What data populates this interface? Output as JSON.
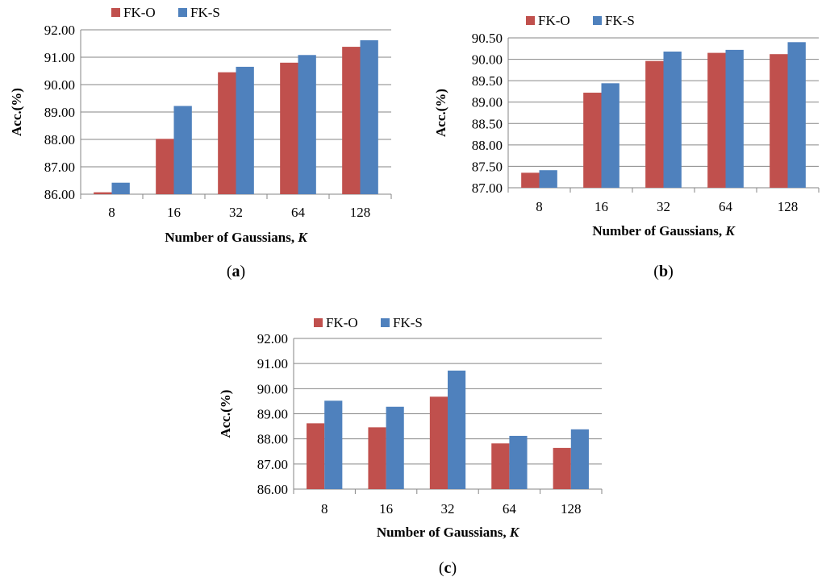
{
  "colors": {
    "fk_o": "#C0504D",
    "fk_s": "#4F81BD"
  },
  "chart_data": [
    {
      "type": "bar",
      "panel_label": "a",
      "categories": [
        "8",
        "16",
        "32",
        "64",
        "128"
      ],
      "series": [
        {
          "name": "FK-O",
          "values": [
            86.07,
            88.02,
            90.45,
            90.8,
            91.38
          ]
        },
        {
          "name": "FK-S",
          "values": [
            86.42,
            89.22,
            90.65,
            91.08,
            91.62
          ]
        }
      ],
      "ylim": [
        86.0,
        92.0
      ],
      "yticks": [
        "86.00",
        "87.00",
        "88.00",
        "89.00",
        "90.00",
        "91.00",
        "92.00"
      ],
      "xlabel": "Number of Gaussians,",
      "xlabel_var": "K",
      "ylabel": "Acc.(%)",
      "legend": "top"
    },
    {
      "type": "bar",
      "panel_label": "b",
      "categories": [
        "8",
        "16",
        "32",
        "64",
        "128"
      ],
      "series": [
        {
          "name": "FK-O",
          "values": [
            87.35,
            89.22,
            89.96,
            90.15,
            90.12
          ]
        },
        {
          "name": "FK-S",
          "values": [
            87.41,
            89.44,
            90.18,
            90.22,
            90.4
          ]
        }
      ],
      "ylim": [
        87.0,
        90.5
      ],
      "yticks": [
        "87.00",
        "87.50",
        "88.00",
        "88.50",
        "89.00",
        "89.50",
        "90.00",
        "90.50"
      ],
      "xlabel": "Number of Gaussians,",
      "xlabel_var": "K",
      "ylabel": "Acc.(%)",
      "legend": "top"
    },
    {
      "type": "bar",
      "panel_label": "c",
      "categories": [
        "8",
        "16",
        "32",
        "64",
        "128"
      ],
      "series": [
        {
          "name": "FK-O",
          "values": [
            88.62,
            88.46,
            89.68,
            87.82,
            87.64
          ]
        },
        {
          "name": "FK-S",
          "values": [
            89.52,
            89.28,
            90.72,
            88.12,
            88.38
          ]
        }
      ],
      "ylim": [
        86.0,
        92.0
      ],
      "yticks": [
        "86.00",
        "87.00",
        "88.00",
        "89.00",
        "90.00",
        "91.00",
        "92.00"
      ],
      "xlabel": "Number of Gaussians,",
      "xlabel_var": "K",
      "ylabel": "Acc.(%)",
      "legend": "top"
    }
  ]
}
